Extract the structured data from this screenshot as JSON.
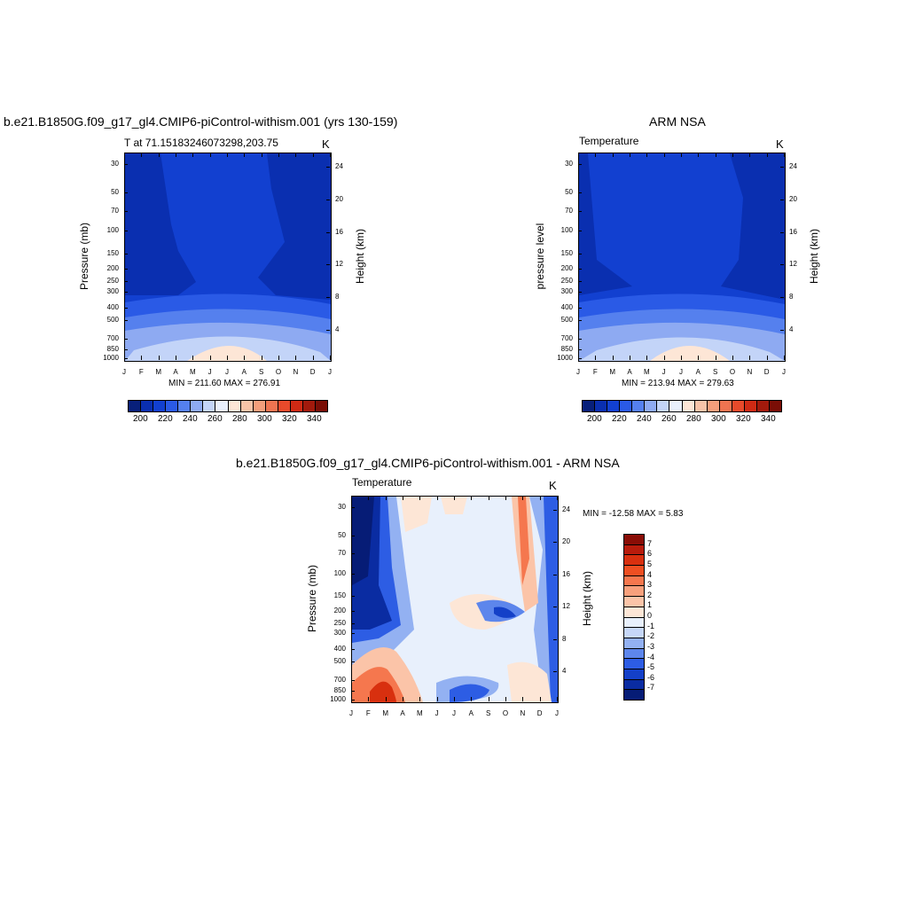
{
  "panels": {
    "left": {
      "title": "b.e21.B1850G.f09_g17_gl4.CMIP6-piControl-withism.001 (yrs 130-159)",
      "subtitle": "T at 71.15183246073298,203.75",
      "units": "K",
      "ylabel": "Pressure (mb)",
      "ylabel_right": "Height (km)",
      "minmax": "MIN = 211.60 MAX = 276.91"
    },
    "right": {
      "title": "ARM NSA",
      "subtitle": "Temperature",
      "units": "K",
      "ylabel": "pressure level",
      "ylabel_right": "Height (km)",
      "minmax": "MIN = 213.94 MAX = 279.63"
    },
    "diff": {
      "title": "b.e21.B1850G.f09_g17_gl4.CMIP6-piControl-withism.001 - ARM NSA",
      "subtitle": "Temperature",
      "units": "K",
      "ylabel": "Pressure (mb)",
      "ylabel_right": "Height (km)",
      "minmax": "MIN = -12.58 MAX =   5.83"
    }
  },
  "chart_data": [
    {
      "type": "heatmap",
      "title": "b.e21.B1850G.f09_g17_gl4.CMIP6-piControl-withism.001 (yrs 130-159)",
      "x_tick_labels": [
        "J",
        "F",
        "M",
        "A",
        "M",
        "J",
        "J",
        "A",
        "S",
        "O",
        "N",
        "D",
        "J"
      ],
      "y_tick_labels": [
        "30",
        "50",
        "70",
        "100",
        "150",
        "200",
        "250",
        "300",
        "400",
        "500",
        "700",
        "850",
        "1000"
      ],
      "y_values_mb": [
        30,
        50,
        70,
        100,
        150,
        200,
        250,
        300,
        400,
        500,
        700,
        850,
        1000
      ],
      "y_right_tick_labels": [
        "24",
        "20",
        "16",
        "12",
        "8",
        "4"
      ],
      "ylabel": "Pressure (mb)",
      "ylabel_right": "Height (km)",
      "y_scale": "log",
      "min": 211.6,
      "max": 276.91,
      "colorbar_levels": [
        "200",
        "220",
        "240",
        "260",
        "280",
        "300",
        "320",
        "340"
      ]
    },
    {
      "type": "heatmap",
      "title": "ARM NSA",
      "x_tick_labels": [
        "J",
        "F",
        "M",
        "A",
        "M",
        "J",
        "J",
        "A",
        "S",
        "O",
        "N",
        "D",
        "J"
      ],
      "y_tick_labels": [
        "30",
        "50",
        "70",
        "100",
        "150",
        "200",
        "250",
        "300",
        "400",
        "500",
        "700",
        "850",
        "1000"
      ],
      "y_values_mb": [
        30,
        50,
        70,
        100,
        150,
        200,
        250,
        300,
        400,
        500,
        700,
        850,
        1000
      ],
      "y_right_tick_labels": [
        "24",
        "20",
        "16",
        "12",
        "8",
        "4"
      ],
      "ylabel": "pressure level",
      "ylabel_right": "Height (km)",
      "y_scale": "log",
      "min": 213.94,
      "max": 279.63,
      "colorbar_levels": [
        "200",
        "220",
        "240",
        "260",
        "280",
        "300",
        "320",
        "340"
      ]
    },
    {
      "type": "heatmap",
      "title": "b.e21.B1850G.f09_g17_gl4.CMIP6-piControl-withism.001 - ARM NSA",
      "x_tick_labels": [
        "J",
        "F",
        "M",
        "A",
        "M",
        "J",
        "J",
        "A",
        "S",
        "O",
        "N",
        "D",
        "J"
      ],
      "y_tick_labels": [
        "30",
        "50",
        "70",
        "100",
        "150",
        "200",
        "250",
        "300",
        "400",
        "500",
        "700",
        "850",
        "1000"
      ],
      "y_values_mb": [
        30,
        50,
        70,
        100,
        150,
        200,
        250,
        300,
        400,
        500,
        700,
        850,
        1000
      ],
      "y_right_tick_labels": [
        "24",
        "20",
        "16",
        "12",
        "8",
        "4"
      ],
      "ylabel": "Pressure (mb)",
      "ylabel_right": "Height (km)",
      "y_scale": "log",
      "min": -12.58,
      "max": 5.83,
      "colorbar_levels": [
        "7",
        "6",
        "5",
        "4",
        "3",
        "2",
        "1",
        "0",
        "-1",
        "-2",
        "-3",
        "-4",
        "-5",
        "-6",
        "-7"
      ]
    }
  ],
  "colors": {
    "abs_palette": [
      "#08207a",
      "#0a2fb0",
      "#1240d0",
      "#2a5ae6",
      "#5580ee",
      "#8eaaf2",
      "#c3d4f8",
      "#e9f0fc",
      "#fde6d6",
      "#f7c3a8",
      "#f49e7b",
      "#ef7451",
      "#e84a2b",
      "#cf2a14",
      "#a21a0c",
      "#7a0e06"
    ],
    "diff_palette": [
      "#8a0d06",
      "#b81c0c",
      "#d8300f",
      "#ee4f22",
      "#f5774e",
      "#f7a07c",
      "#fbc4a8",
      "#fde6d6",
      "#e8f0fc",
      "#c6d7f8",
      "#93b1f2",
      "#5d86ec",
      "#2d5de4",
      "#1440c8",
      "#0a2ca2",
      "#061c76"
    ]
  }
}
